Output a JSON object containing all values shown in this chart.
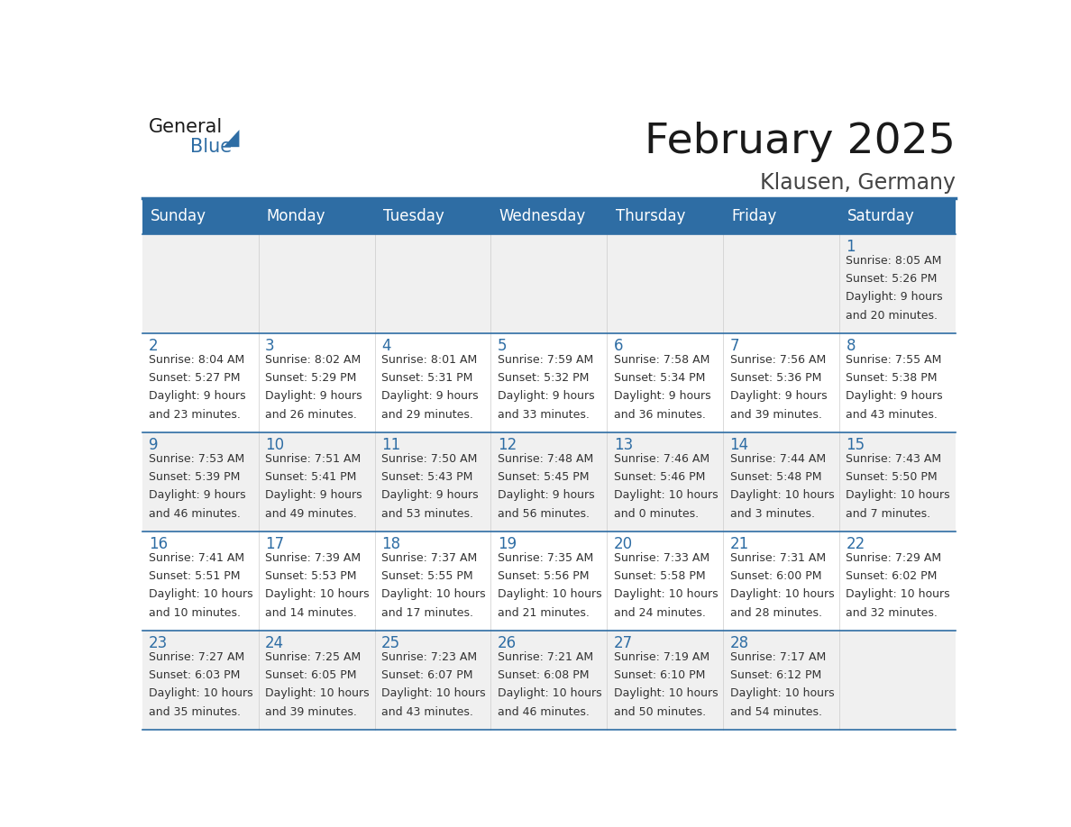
{
  "title": "February 2025",
  "subtitle": "Klausen, Germany",
  "header_bg": "#2E6DA4",
  "header_text_color": "#FFFFFF",
  "cell_bg_light": "#F0F0F0",
  "cell_bg_white": "#FFFFFF",
  "grid_line_color": "#2E6DA4",
  "day_number_color": "#2E6DA4",
  "cell_text_color": "#333333",
  "days_of_week": [
    "Sunday",
    "Monday",
    "Tuesday",
    "Wednesday",
    "Thursday",
    "Friday",
    "Saturday"
  ],
  "calendar_data": [
    [
      null,
      null,
      null,
      null,
      null,
      null,
      {
        "day": 1,
        "sunrise": "8:05 AM",
        "sunset": "5:26 PM",
        "daylight_hours": 9,
        "daylight_minutes": 20
      }
    ],
    [
      {
        "day": 2,
        "sunrise": "8:04 AM",
        "sunset": "5:27 PM",
        "daylight_hours": 9,
        "daylight_minutes": 23
      },
      {
        "day": 3,
        "sunrise": "8:02 AM",
        "sunset": "5:29 PM",
        "daylight_hours": 9,
        "daylight_minutes": 26
      },
      {
        "day": 4,
        "sunrise": "8:01 AM",
        "sunset": "5:31 PM",
        "daylight_hours": 9,
        "daylight_minutes": 29
      },
      {
        "day": 5,
        "sunrise": "7:59 AM",
        "sunset": "5:32 PM",
        "daylight_hours": 9,
        "daylight_minutes": 33
      },
      {
        "day": 6,
        "sunrise": "7:58 AM",
        "sunset": "5:34 PM",
        "daylight_hours": 9,
        "daylight_minutes": 36
      },
      {
        "day": 7,
        "sunrise": "7:56 AM",
        "sunset": "5:36 PM",
        "daylight_hours": 9,
        "daylight_minutes": 39
      },
      {
        "day": 8,
        "sunrise": "7:55 AM",
        "sunset": "5:38 PM",
        "daylight_hours": 9,
        "daylight_minutes": 43
      }
    ],
    [
      {
        "day": 9,
        "sunrise": "7:53 AM",
        "sunset": "5:39 PM",
        "daylight_hours": 9,
        "daylight_minutes": 46
      },
      {
        "day": 10,
        "sunrise": "7:51 AM",
        "sunset": "5:41 PM",
        "daylight_hours": 9,
        "daylight_minutes": 49
      },
      {
        "day": 11,
        "sunrise": "7:50 AM",
        "sunset": "5:43 PM",
        "daylight_hours": 9,
        "daylight_minutes": 53
      },
      {
        "day": 12,
        "sunrise": "7:48 AM",
        "sunset": "5:45 PM",
        "daylight_hours": 9,
        "daylight_minutes": 56
      },
      {
        "day": 13,
        "sunrise": "7:46 AM",
        "sunset": "5:46 PM",
        "daylight_hours": 10,
        "daylight_minutes": 0
      },
      {
        "day": 14,
        "sunrise": "7:44 AM",
        "sunset": "5:48 PM",
        "daylight_hours": 10,
        "daylight_minutes": 3
      },
      {
        "day": 15,
        "sunrise": "7:43 AM",
        "sunset": "5:50 PM",
        "daylight_hours": 10,
        "daylight_minutes": 7
      }
    ],
    [
      {
        "day": 16,
        "sunrise": "7:41 AM",
        "sunset": "5:51 PM",
        "daylight_hours": 10,
        "daylight_minutes": 10
      },
      {
        "day": 17,
        "sunrise": "7:39 AM",
        "sunset": "5:53 PM",
        "daylight_hours": 10,
        "daylight_minutes": 14
      },
      {
        "day": 18,
        "sunrise": "7:37 AM",
        "sunset": "5:55 PM",
        "daylight_hours": 10,
        "daylight_minutes": 17
      },
      {
        "day": 19,
        "sunrise": "7:35 AM",
        "sunset": "5:56 PM",
        "daylight_hours": 10,
        "daylight_minutes": 21
      },
      {
        "day": 20,
        "sunrise": "7:33 AM",
        "sunset": "5:58 PM",
        "daylight_hours": 10,
        "daylight_minutes": 24
      },
      {
        "day": 21,
        "sunrise": "7:31 AM",
        "sunset": "6:00 PM",
        "daylight_hours": 10,
        "daylight_minutes": 28
      },
      {
        "day": 22,
        "sunrise": "7:29 AM",
        "sunset": "6:02 PM",
        "daylight_hours": 10,
        "daylight_minutes": 32
      }
    ],
    [
      {
        "day": 23,
        "sunrise": "7:27 AM",
        "sunset": "6:03 PM",
        "daylight_hours": 10,
        "daylight_minutes": 35
      },
      {
        "day": 24,
        "sunrise": "7:25 AM",
        "sunset": "6:05 PM",
        "daylight_hours": 10,
        "daylight_minutes": 39
      },
      {
        "day": 25,
        "sunrise": "7:23 AM",
        "sunset": "6:07 PM",
        "daylight_hours": 10,
        "daylight_minutes": 43
      },
      {
        "day": 26,
        "sunrise": "7:21 AM",
        "sunset": "6:08 PM",
        "daylight_hours": 10,
        "daylight_minutes": 46
      },
      {
        "day": 27,
        "sunrise": "7:19 AM",
        "sunset": "6:10 PM",
        "daylight_hours": 10,
        "daylight_minutes": 50
      },
      {
        "day": 28,
        "sunrise": "7:17 AM",
        "sunset": "6:12 PM",
        "daylight_hours": 10,
        "daylight_minutes": 54
      },
      null
    ]
  ],
  "logo_general_color": "#1a1a1a",
  "logo_blue_color": "#2E6DA4",
  "title_fontsize": 34,
  "subtitle_fontsize": 17,
  "header_fontsize": 12,
  "day_number_fontsize": 12,
  "cell_text_fontsize": 9.0
}
